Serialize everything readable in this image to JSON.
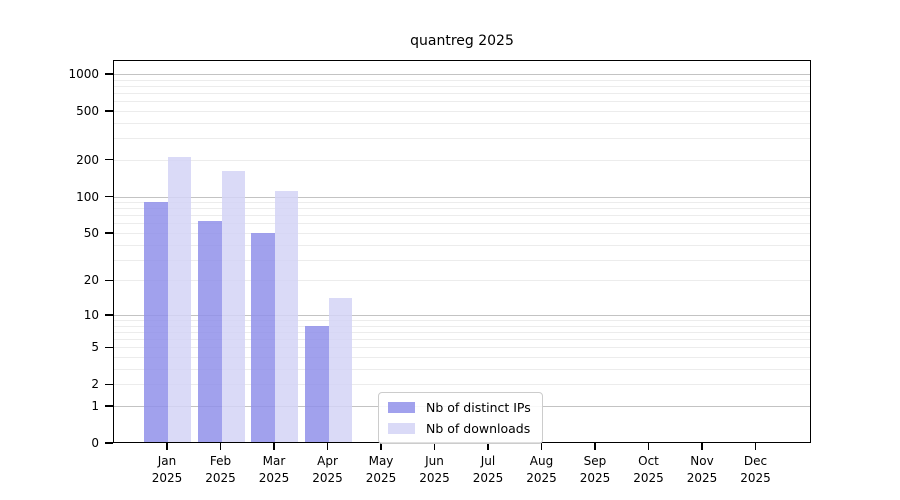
{
  "chart_data": {
    "type": "bar",
    "title": "quantreg 2025",
    "categories": [
      "Jan",
      "Feb",
      "Mar",
      "Apr",
      "May",
      "Jun",
      "Jul",
      "Aug",
      "Sep",
      "Oct",
      "Nov",
      "Dec"
    ],
    "x_year": "2025",
    "series": [
      {
        "name": "Nb of distinct IPs",
        "color": "#9090ea",
        "values": [
          90,
          63,
          50,
          8,
          0,
          0,
          0,
          0,
          0,
          0,
          0,
          0
        ]
      },
      {
        "name": "Nb of downloads",
        "color": "#d3d3f6",
        "values": [
          210,
          162,
          112,
          14,
          0,
          0,
          0,
          0,
          0,
          0,
          0,
          0
        ]
      }
    ],
    "y_ticks": [
      0,
      1,
      2,
      5,
      10,
      20,
      50,
      100,
      200,
      500,
      1000
    ],
    "y_scale": "log10(value+1)",
    "ylim": [
      0,
      1300
    ],
    "grid": true,
    "legend_position": "bottom-center",
    "frame_color": "#000000",
    "major_grid_color": "#c3c3c3",
    "minor_grid_color": "#ececec"
  }
}
